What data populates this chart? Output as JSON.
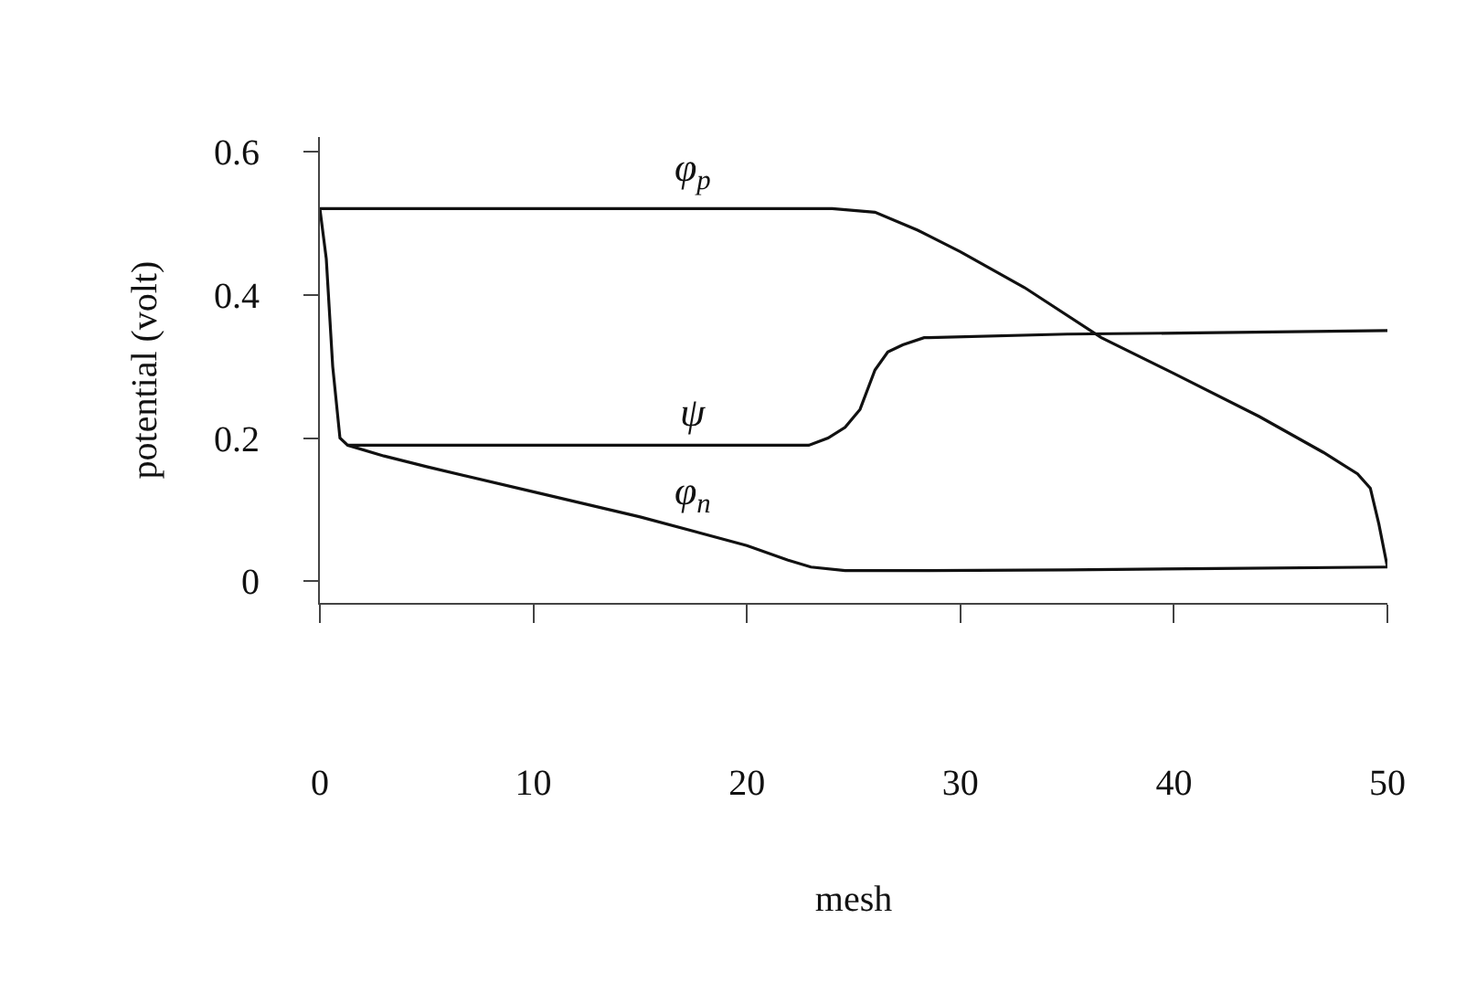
{
  "chart_data": {
    "type": "line",
    "xlabel": "mesh",
    "ylabel": "potential (volt)",
    "xlim": [
      0,
      50
    ],
    "ylim": [
      -0.03,
      0.62
    ],
    "xticks": [
      0,
      10,
      20,
      30,
      40,
      50
    ],
    "yticks": [
      0,
      0.2,
      0.4,
      0.6
    ],
    "grid": false,
    "legend": false,
    "marker": "none",
    "line_style": "solid",
    "series": [
      {
        "name": "φ$_{p}$",
        "color": "#111111",
        "x": [
          0,
          5,
          10,
          15,
          20,
          24,
          26,
          28,
          30,
          33,
          36.6,
          40,
          44,
          47,
          48.6,
          49.2,
          49.6,
          50
        ],
        "values": [
          0.52,
          0.52,
          0.52,
          0.52,
          0.52,
          0.52,
          0.515,
          0.49,
          0.46,
          0.41,
          0.34,
          0.29,
          0.23,
          0.18,
          0.15,
          0.13,
          0.08,
          0.02
        ]
      },
      {
        "name": "ψ",
        "color": "#111111",
        "x": [
          0,
          0.3,
          0.6,
          0.94,
          1.3,
          5,
          10,
          15,
          20,
          22.9,
          23.8,
          24.6,
          25.3,
          26,
          26.6,
          27.3,
          28.3,
          35,
          42,
          50
        ],
        "values": [
          0.52,
          0.45,
          0.3,
          0.2,
          0.19,
          0.19,
          0.19,
          0.19,
          0.19,
          0.19,
          0.2,
          0.215,
          0.24,
          0.295,
          0.32,
          0.33,
          0.34,
          0.345,
          0.347,
          0.35
        ]
      },
      {
        "name": "φ$_{n}$",
        "color": "#111111",
        "x": [
          1.3,
          3,
          5,
          10,
          15,
          20,
          21.9,
          23,
          24.6,
          28,
          35,
          42,
          50
        ],
        "values": [
          0.19,
          0.175,
          0.16,
          0.125,
          0.09,
          0.05,
          0.03,
          0.02,
          0.015,
          0.015,
          0.016,
          0.018,
          0.02
        ]
      }
    ]
  }
}
